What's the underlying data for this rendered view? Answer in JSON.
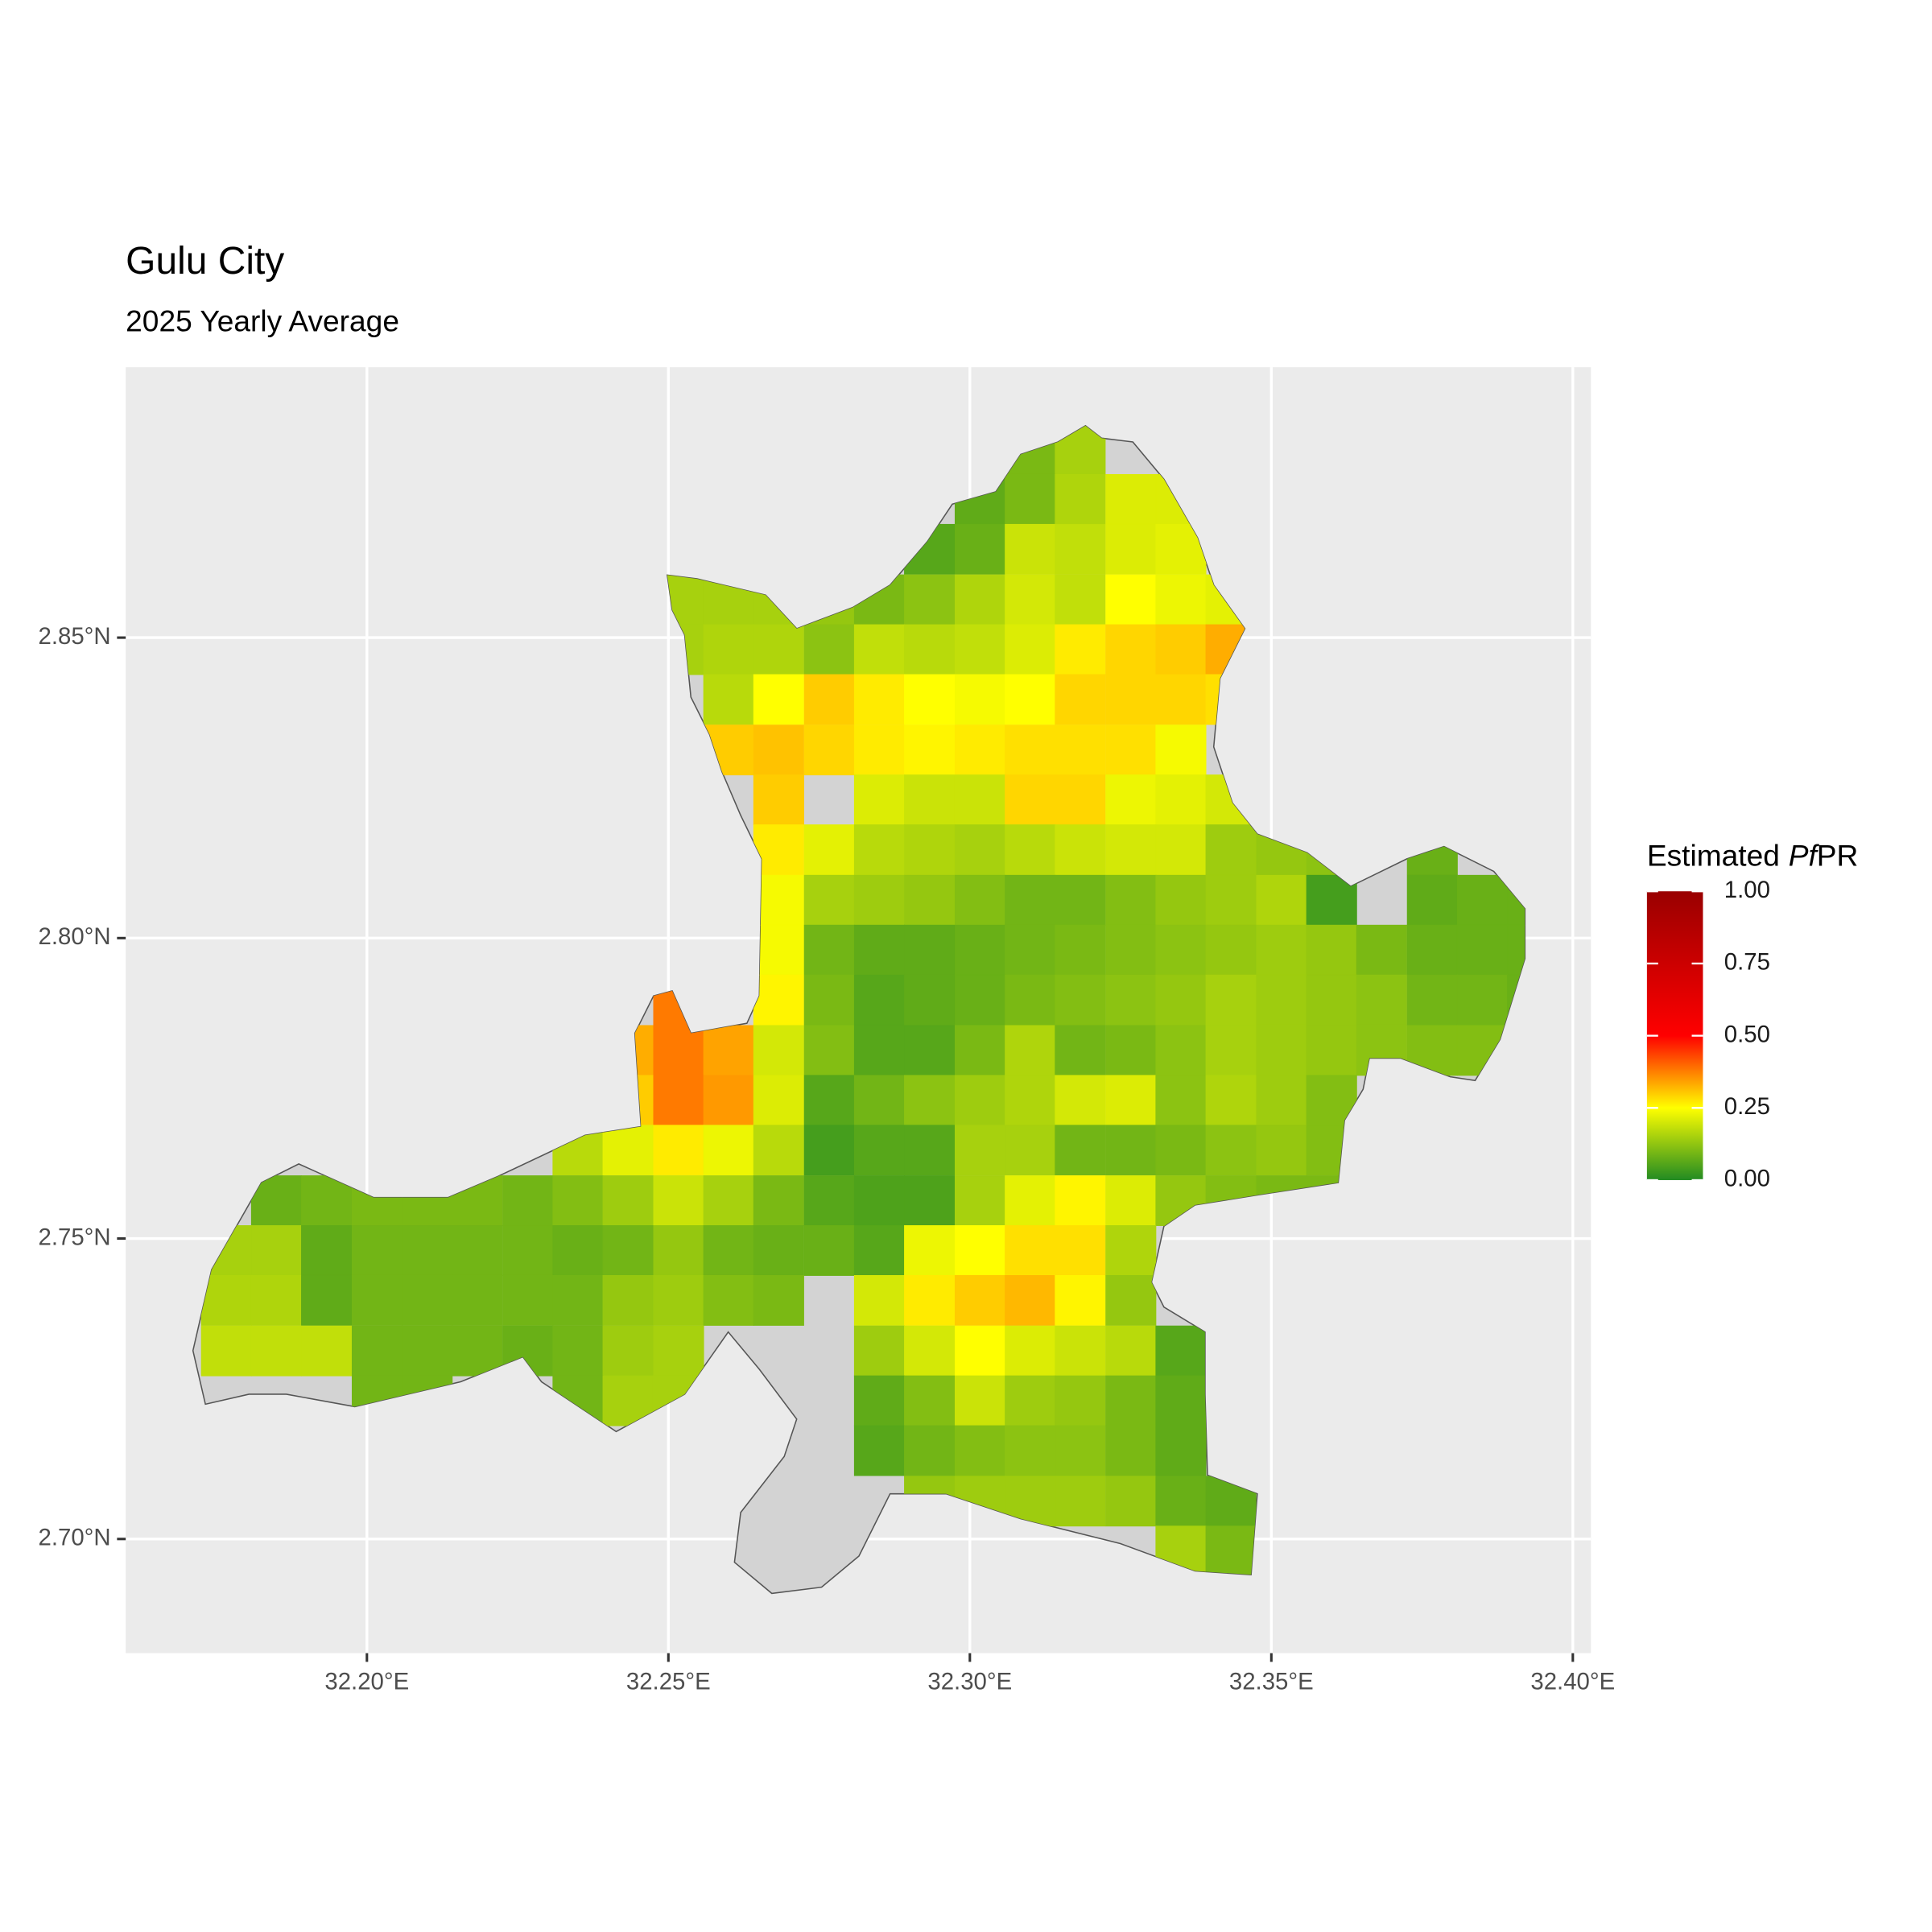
{
  "chart_data": {
    "type": "raster",
    "title": "Gulu City",
    "subtitle": "2025 Yearly Average",
    "legend_title_parts": [
      "Estimated",
      "Pf",
      "PR"
    ],
    "xlim": [
      32.16,
      32.403
    ],
    "ylim": [
      2.681,
      2.895
    ],
    "xticks": [
      {
        "value": 32.2,
        "label": "32.20°E"
      },
      {
        "value": 32.25,
        "label": "32.25°E"
      },
      {
        "value": 32.3,
        "label": "32.30°E"
      },
      {
        "value": 32.35,
        "label": "32.35°E"
      },
      {
        "value": 32.4,
        "label": "32.40°E"
      }
    ],
    "yticks": [
      {
        "value": 2.7,
        "label": "2.70°N"
      },
      {
        "value": 2.75,
        "label": "2.75°N"
      },
      {
        "value": 2.8,
        "label": "2.80°N"
      },
      {
        "value": 2.85,
        "label": "2.85°N"
      }
    ],
    "grid": true,
    "clim": [
      0,
      1
    ],
    "cticks": [
      {
        "value": 0,
        "label": "0.00"
      },
      {
        "value": 0.25,
        "label": "0.25"
      },
      {
        "value": 0.5,
        "label": "0.50"
      },
      {
        "value": 0.75,
        "label": "0.75"
      },
      {
        "value": 1,
        "label": "1.00"
      }
    ],
    "colors": [
      "#228B22",
      "#FFFF00",
      "#FF0000",
      "#CC0000",
      "#990000"
    ],
    "x": [
      32.1767,
      32.185,
      32.1933,
      32.2017,
      32.21,
      32.2183,
      32.2267,
      32.235,
      32.2433,
      32.2517,
      32.26,
      32.2683,
      32.2767,
      32.285,
      32.2933,
      32.3017,
      32.31,
      32.3183,
      32.3267,
      32.335,
      32.3433,
      32.3517,
      32.36,
      32.3683,
      32.3767,
      32.385,
      32.3933
    ],
    "y": [
      2.8813,
      2.873,
      2.8647,
      2.8563,
      2.848,
      2.8397,
      2.8313,
      2.823,
      2.8147,
      2.8063,
      2.798,
      2.7897,
      2.7813,
      2.773,
      2.7647,
      2.7563,
      2.748,
      2.7397,
      2.7313,
      2.723,
      2.7147,
      2.7063,
      2.698
    ],
    "values": [
      [
        null,
        null,
        null,
        null,
        null,
        null,
        null,
        null,
        null,
        null,
        null,
        null,
        null,
        null,
        null,
        null,
        0.1,
        0.15,
        null,
        null,
        null,
        null,
        null,
        null,
        null,
        null,
        null
      ],
      [
        null,
        null,
        null,
        null,
        null,
        null,
        null,
        null,
        null,
        null,
        null,
        null,
        null,
        null,
        null,
        0.07,
        0.1,
        0.16,
        0.21,
        0.21,
        null,
        null,
        null,
        null,
        null,
        null,
        null
      ],
      [
        null,
        null,
        null,
        null,
        null,
        null,
        null,
        null,
        null,
        null,
        null,
        null,
        null,
        null,
        0.06,
        0.08,
        0.19,
        0.18,
        0.21,
        0.22,
        null,
        null,
        null,
        null,
        null,
        null,
        null
      ],
      [
        null,
        null,
        null,
        null,
        null,
        null,
        null,
        null,
        null,
        0.15,
        0.15,
        0.15,
        0.13,
        0.1,
        0.12,
        0.16,
        0.2,
        0.18,
        0.25,
        0.23,
        0.22,
        null,
        null,
        null,
        null,
        null,
        null
      ],
      [
        null,
        null,
        null,
        null,
        null,
        null,
        null,
        null,
        null,
        0.15,
        0.16,
        0.16,
        0.12,
        0.18,
        0.17,
        0.18,
        0.21,
        0.27,
        0.29,
        0.3,
        0.33,
        null,
        null,
        null,
        null,
        null,
        null
      ],
      [
        null,
        null,
        null,
        null,
        null,
        null,
        null,
        null,
        null,
        null,
        0.17,
        0.25,
        0.3,
        0.27,
        0.25,
        0.24,
        0.25,
        0.29,
        0.29,
        0.29,
        0.28,
        null,
        null,
        null,
        null,
        null,
        null
      ],
      [
        null,
        null,
        null,
        null,
        null,
        null,
        null,
        null,
        null,
        null,
        0.3,
        0.31,
        0.29,
        0.27,
        0.26,
        0.27,
        0.28,
        0.28,
        0.28,
        0.24,
        null,
        null,
        null,
        null,
        null,
        null,
        null
      ],
      [
        null,
        null,
        null,
        null,
        null,
        null,
        null,
        null,
        null,
        null,
        null,
        0.3,
        null,
        0.21,
        0.19,
        0.19,
        0.29,
        0.29,
        0.23,
        0.22,
        0.2,
        null,
        null,
        null,
        null,
        null,
        null
      ],
      [
        null,
        null,
        null,
        null,
        null,
        null,
        null,
        null,
        null,
        null,
        null,
        0.27,
        0.22,
        0.17,
        0.16,
        0.15,
        0.17,
        0.19,
        0.2,
        0.2,
        0.14,
        0.13,
        0.12,
        null,
        0.08,
        null,
        null
      ],
      [
        null,
        null,
        null,
        null,
        null,
        null,
        null,
        null,
        null,
        null,
        null,
        0.24,
        0.15,
        0.14,
        0.13,
        0.11,
        0.09,
        0.09,
        0.11,
        0.13,
        0.14,
        0.16,
        0.04,
        null,
        0.07,
        0.08,
        0.08
      ],
      [
        null,
        null,
        null,
        null,
        null,
        null,
        null,
        null,
        null,
        null,
        null,
        0.24,
        0.09,
        0.07,
        0.07,
        0.08,
        0.09,
        0.1,
        0.11,
        0.12,
        0.13,
        0.14,
        0.13,
        0.1,
        0.08,
        0.08,
        0.08
      ],
      [
        null,
        null,
        null,
        null,
        null,
        null,
        null,
        null,
        null,
        0.38,
        null,
        0.26,
        0.1,
        0.06,
        0.07,
        0.08,
        0.1,
        0.11,
        0.12,
        0.13,
        0.15,
        0.14,
        0.13,
        0.12,
        0.09,
        0.09,
        0.08
      ],
      [
        null,
        null,
        null,
        null,
        null,
        null,
        null,
        null,
        0.33,
        0.38,
        0.34,
        0.2,
        0.11,
        0.06,
        0.06,
        0.1,
        0.16,
        0.09,
        0.1,
        0.12,
        0.15,
        0.14,
        0.13,
        0.12,
        0.11,
        0.11,
        null
      ],
      [
        null,
        null,
        null,
        null,
        null,
        null,
        null,
        null,
        0.3,
        0.38,
        0.35,
        0.21,
        0.06,
        0.09,
        0.12,
        0.14,
        0.16,
        0.2,
        0.21,
        0.12,
        0.16,
        0.14,
        0.11,
        null,
        null,
        null,
        null
      ],
      [
        null,
        null,
        null,
        null,
        null,
        null,
        null,
        0.17,
        0.22,
        0.27,
        0.23,
        0.17,
        0.04,
        0.06,
        0.06,
        0.15,
        0.15,
        0.09,
        0.09,
        0.1,
        0.12,
        0.13,
        0.11,
        null,
        null,
        null,
        null
      ],
      [
        null,
        0.08,
        0.09,
        0.1,
        0.1,
        0.1,
        0.09,
        0.11,
        0.14,
        0.19,
        0.15,
        0.1,
        0.06,
        0.05,
        0.05,
        0.15,
        0.22,
        0.26,
        0.21,
        0.13,
        0.11,
        0.1,
        0.1,
        null,
        null,
        null,
        null
      ],
      [
        0.15,
        0.15,
        0.07,
        0.09,
        0.09,
        0.09,
        0.09,
        0.08,
        0.09,
        0.13,
        0.09,
        0.08,
        0.08,
        0.06,
        0.23,
        0.25,
        0.28,
        0.28,
        0.16,
        null,
        null,
        null,
        null,
        null,
        null,
        null,
        null
      ],
      [
        0.16,
        0.16,
        0.07,
        0.09,
        0.09,
        0.09,
        0.09,
        0.09,
        0.13,
        0.14,
        0.11,
        0.1,
        null,
        0.2,
        0.27,
        0.3,
        0.32,
        0.26,
        0.13,
        null,
        null,
        null,
        null,
        null,
        null,
        null,
        null
      ],
      [
        0.18,
        0.18,
        0.18,
        0.09,
        0.09,
        0.09,
        0.08,
        0.09,
        0.14,
        0.15,
        null,
        null,
        null,
        0.14,
        0.2,
        0.25,
        0.21,
        0.19,
        0.17,
        0.06,
        null,
        null,
        null,
        null,
        null,
        null,
        null
      ],
      [
        null,
        null,
        null,
        0.09,
        0.09,
        null,
        null,
        0.09,
        0.15,
        0.15,
        null,
        null,
        null,
        0.07,
        0.11,
        0.19,
        0.14,
        0.13,
        0.1,
        0.07,
        null,
        null,
        null,
        null,
        null,
        null,
        null
      ],
      [
        null,
        null,
        null,
        null,
        null,
        null,
        null,
        null,
        null,
        null,
        null,
        null,
        null,
        0.06,
        0.09,
        0.11,
        0.12,
        0.12,
        0.1,
        0.07,
        null,
        null,
        null,
        null,
        null,
        null,
        null
      ],
      [
        null,
        null,
        null,
        null,
        null,
        null,
        null,
        null,
        null,
        null,
        null,
        null,
        null,
        null,
        0.13,
        0.14,
        0.14,
        0.14,
        0.13,
        0.08,
        0.07,
        null,
        null,
        null,
        null,
        null,
        null
      ],
      [
        null,
        null,
        null,
        null,
        null,
        null,
        null,
        null,
        null,
        null,
        null,
        null,
        null,
        null,
        null,
        null,
        null,
        null,
        null,
        0.15,
        0.1,
        null,
        null,
        null,
        null,
        null,
        null
      ]
    ]
  }
}
